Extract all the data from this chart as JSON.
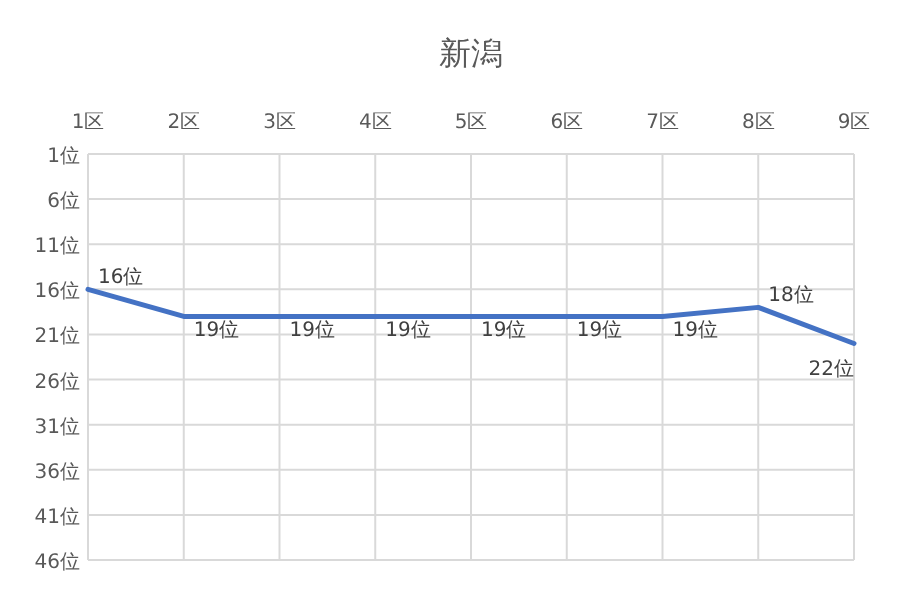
{
  "chart_data": {
    "type": "line",
    "title": "新潟",
    "categories": [
      "1区",
      "2区",
      "3区",
      "4区",
      "5区",
      "6区",
      "7区",
      "8区",
      "9区"
    ],
    "series": [
      {
        "color": "#4472c4",
        "values": [
          16,
          19,
          19,
          19,
          19,
          19,
          19,
          18,
          22
        ],
        "value_labels": [
          "16位",
          "19位",
          "19位",
          "19位",
          "19位",
          "19位",
          "19位",
          "18位",
          "22位"
        ]
      }
    ],
    "ylim": [
      46,
      1
    ],
    "yticks": [
      {
        "value": 1,
        "label": "1位"
      },
      {
        "value": 6,
        "label": "6位"
      },
      {
        "value": 11,
        "label": "11位"
      },
      {
        "value": 16,
        "label": "16位"
      },
      {
        "value": 21,
        "label": "21位"
      },
      {
        "value": 26,
        "label": "26位"
      },
      {
        "value": 31,
        "label": "31位"
      },
      {
        "value": 36,
        "label": "36位"
      },
      {
        "value": 41,
        "label": "41位"
      },
      {
        "value": 46,
        "label": "46位"
      }
    ],
    "grid": true,
    "marker": "none",
    "line_style": "solid"
  }
}
